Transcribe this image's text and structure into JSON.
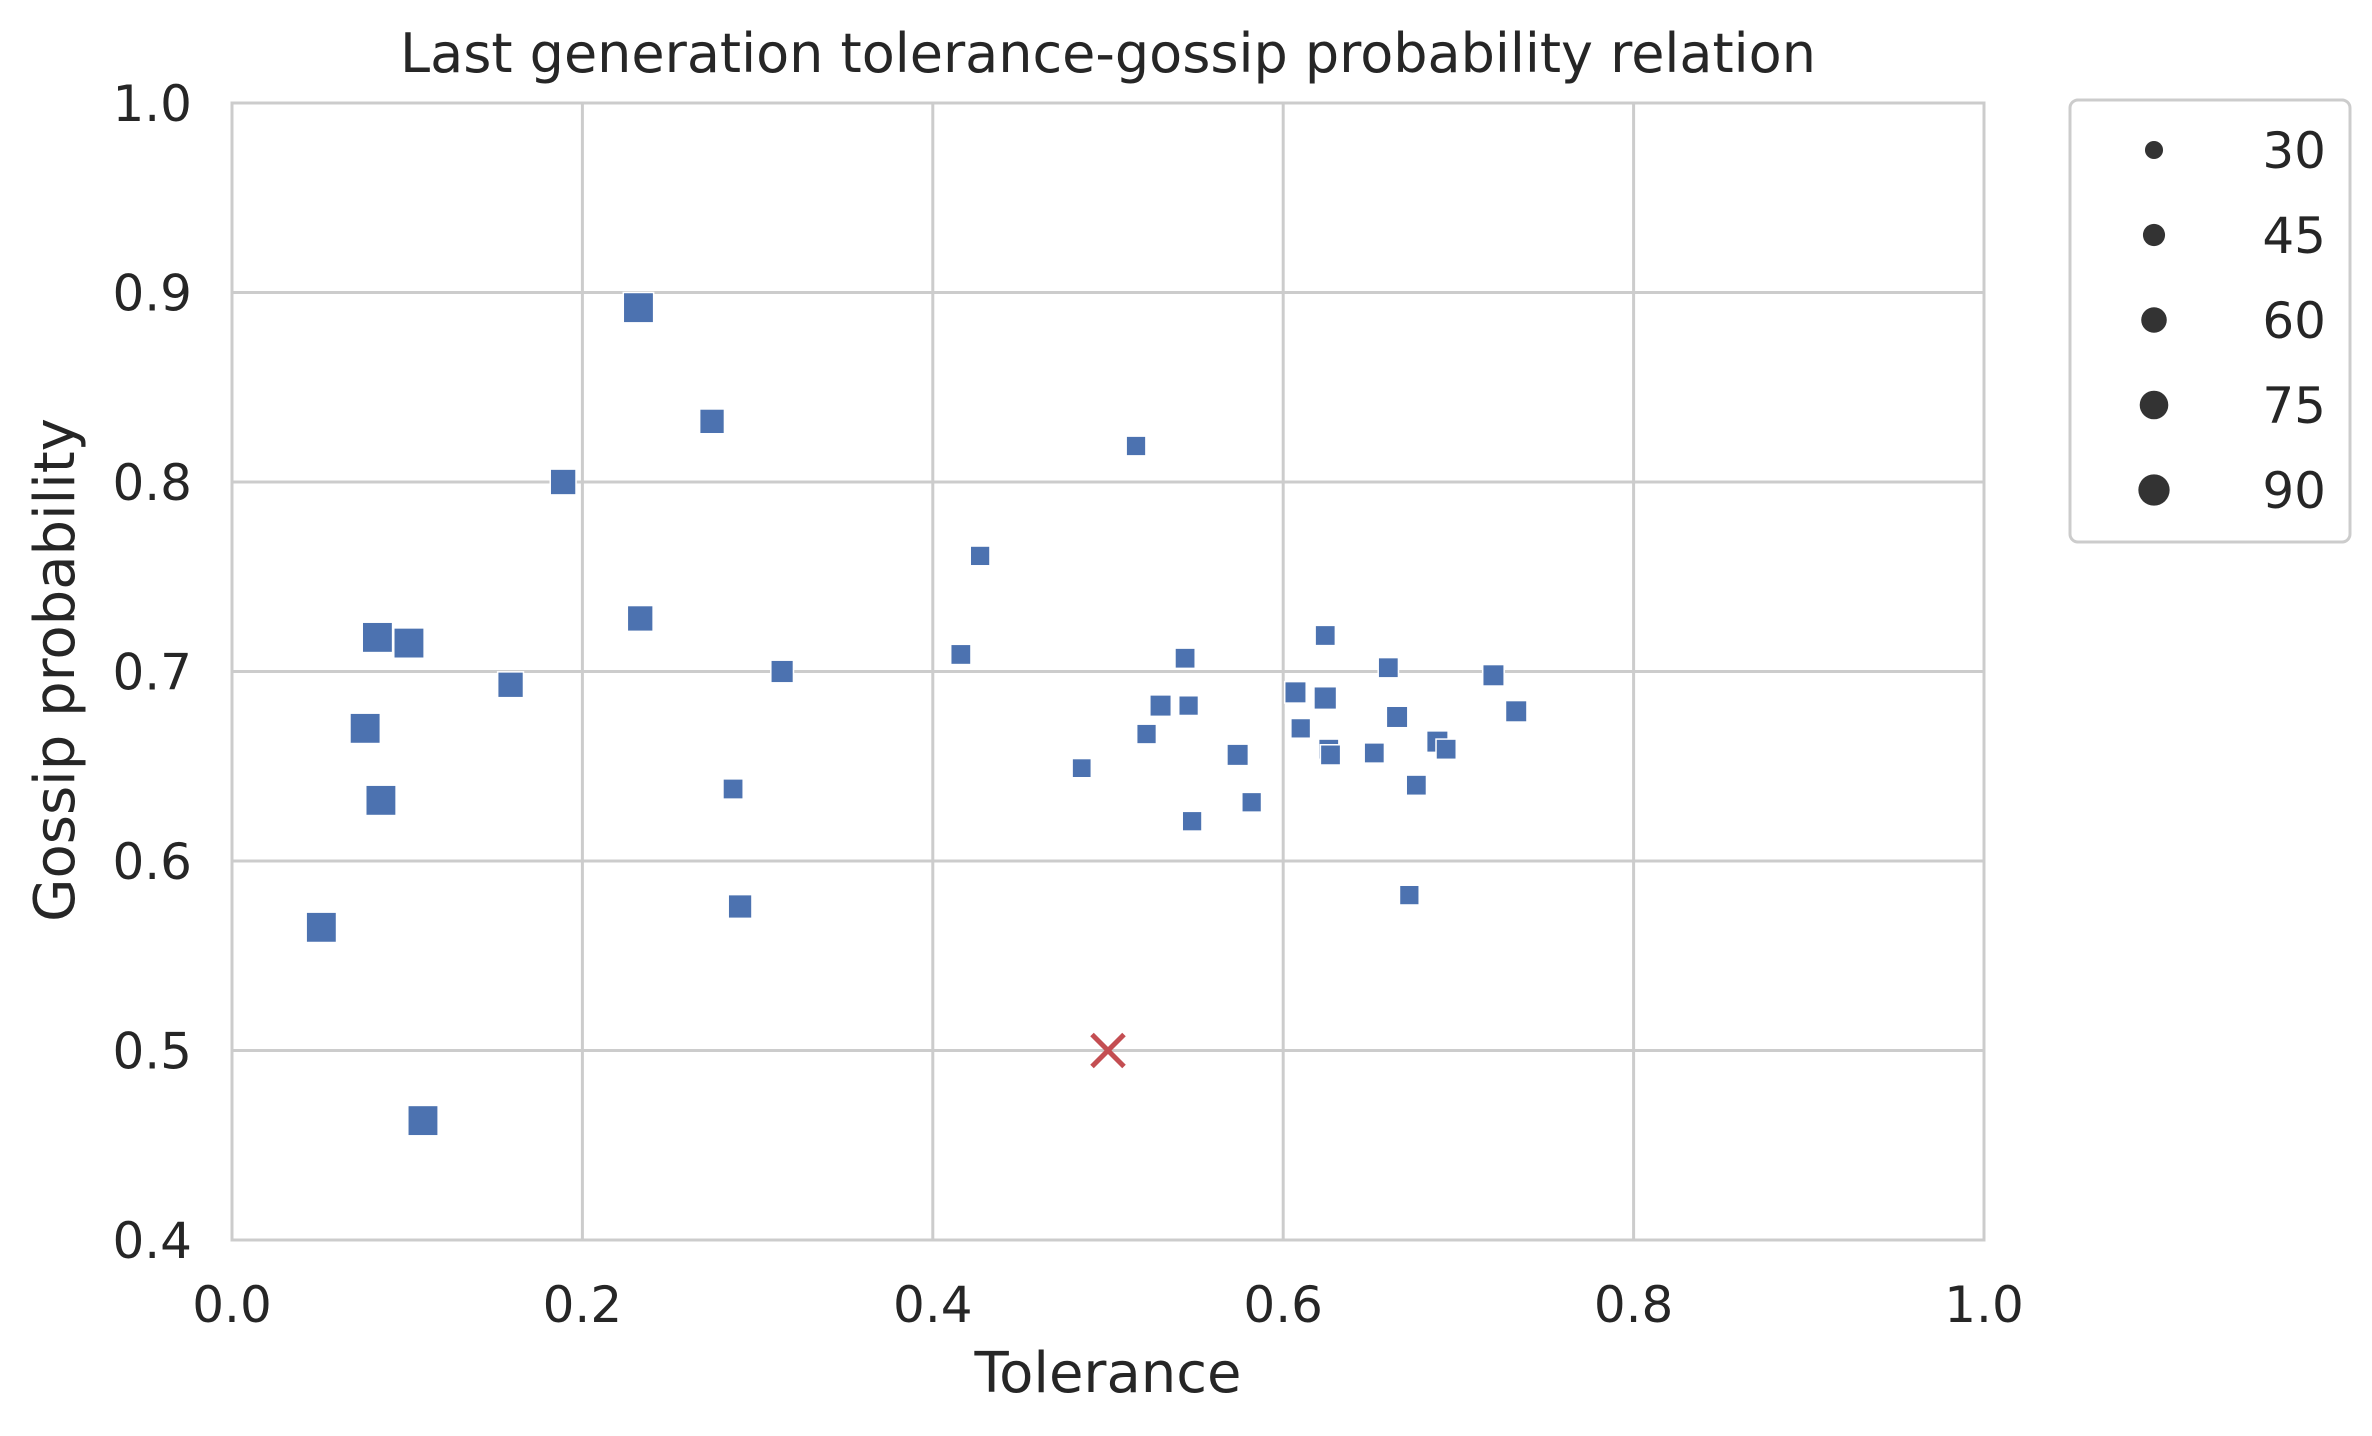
{
  "chart_data": {
    "type": "scatter",
    "title": "Last generation tolerance-gossip probability relation",
    "xlabel": "Tolerance",
    "ylabel": "Gossip probability",
    "xlim": [
      0.0,
      1.0
    ],
    "ylim": [
      0.4,
      1.0
    ],
    "xticks": [
      "0.0",
      "0.2",
      "0.4",
      "0.6",
      "0.8",
      "1.0"
    ],
    "yticks": [
      "0.4",
      "0.5",
      "0.6",
      "0.7",
      "0.8",
      "0.9",
      "1.0"
    ],
    "grid": true,
    "legend": {
      "placement": "outside-upper-right",
      "entries": [
        {
          "label": "30",
          "size": 30
        },
        {
          "label": "45",
          "size": 45
        },
        {
          "label": "60",
          "size": 60
        },
        {
          "label": "75",
          "size": 75
        },
        {
          "label": "90",
          "size": 90
        }
      ]
    },
    "series_color": "#4c72b0",
    "reference_color": "#c44e52",
    "reference_point": {
      "x": 0.5,
      "y": 0.5
    },
    "points": [
      {
        "x": 0.232,
        "y": 0.892,
        "size": 90
      },
      {
        "x": 0.274,
        "y": 0.832,
        "size": 60
      },
      {
        "x": 0.189,
        "y": 0.8,
        "size": 65
      },
      {
        "x": 0.233,
        "y": 0.728,
        "size": 65
      },
      {
        "x": 0.083,
        "y": 0.718,
        "size": 90
      },
      {
        "x": 0.101,
        "y": 0.715,
        "size": 90
      },
      {
        "x": 0.159,
        "y": 0.693,
        "size": 65
      },
      {
        "x": 0.076,
        "y": 0.67,
        "size": 90
      },
      {
        "x": 0.085,
        "y": 0.632,
        "size": 90
      },
      {
        "x": 0.051,
        "y": 0.565,
        "size": 90
      },
      {
        "x": 0.109,
        "y": 0.463,
        "size": 90
      },
      {
        "x": 0.314,
        "y": 0.7,
        "size": 50
      },
      {
        "x": 0.286,
        "y": 0.638,
        "size": 40
      },
      {
        "x": 0.29,
        "y": 0.576,
        "size": 55
      },
      {
        "x": 0.416,
        "y": 0.709,
        "size": 40
      },
      {
        "x": 0.427,
        "y": 0.761,
        "size": 38
      },
      {
        "x": 0.516,
        "y": 0.819,
        "size": 38
      },
      {
        "x": 0.485,
        "y": 0.649,
        "size": 36
      },
      {
        "x": 0.522,
        "y": 0.667,
        "size": 38
      },
      {
        "x": 0.53,
        "y": 0.682,
        "size": 45
      },
      {
        "x": 0.544,
        "y": 0.707,
        "size": 40
      },
      {
        "x": 0.546,
        "y": 0.682,
        "size": 38
      },
      {
        "x": 0.548,
        "y": 0.621,
        "size": 38
      },
      {
        "x": 0.574,
        "y": 0.656,
        "size": 45
      },
      {
        "x": 0.582,
        "y": 0.631,
        "size": 38
      },
      {
        "x": 0.607,
        "y": 0.689,
        "size": 45
      },
      {
        "x": 0.61,
        "y": 0.67,
        "size": 38
      },
      {
        "x": 0.624,
        "y": 0.719,
        "size": 40
      },
      {
        "x": 0.624,
        "y": 0.686,
        "size": 50
      },
      {
        "x": 0.626,
        "y": 0.659,
        "size": 40
      },
      {
        "x": 0.627,
        "y": 0.656,
        "size": 40
      },
      {
        "x": 0.652,
        "y": 0.657,
        "size": 40
      },
      {
        "x": 0.66,
        "y": 0.702,
        "size": 40
      },
      {
        "x": 0.665,
        "y": 0.676,
        "size": 45
      },
      {
        "x": 0.672,
        "y": 0.582,
        "size": 38
      },
      {
        "x": 0.676,
        "y": 0.64,
        "size": 40
      },
      {
        "x": 0.688,
        "y": 0.663,
        "size": 45
      },
      {
        "x": 0.693,
        "y": 0.659,
        "size": 40
      },
      {
        "x": 0.72,
        "y": 0.698,
        "size": 45
      },
      {
        "x": 0.733,
        "y": 0.679,
        "size": 45
      }
    ]
  }
}
